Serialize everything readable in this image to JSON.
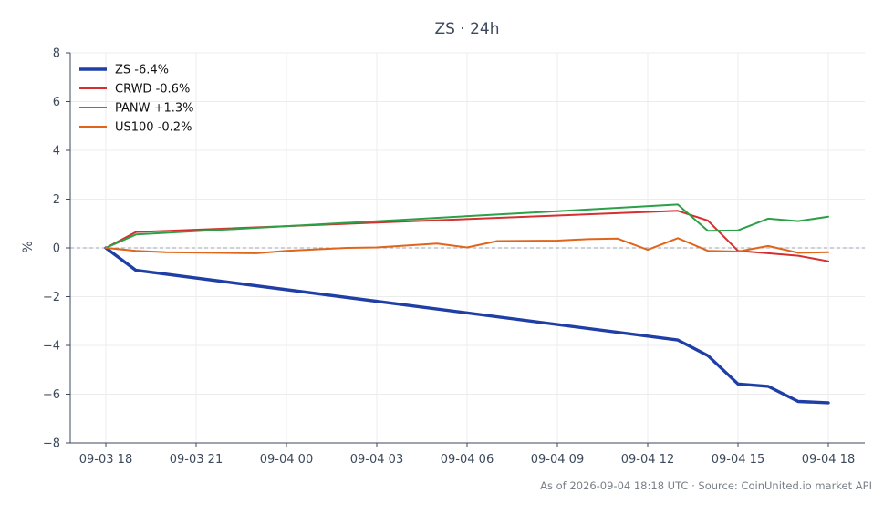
{
  "chart_data": {
    "type": "line",
    "title": "ZS · 24h",
    "xlabel": "",
    "ylabel": "%",
    "ylim": [
      -8,
      8
    ],
    "yticks": [
      8,
      6,
      4,
      2,
      0,
      -2,
      -4,
      -6,
      -8
    ],
    "ytick_labels": [
      "8",
      "6",
      "4",
      "2",
      "0",
      "−2",
      "−4",
      "−6",
      "−8"
    ],
    "x_range": [
      "09-03 18:00",
      "09-04 18:00"
    ],
    "xtick_labels": [
      "09-03 18",
      "09-03 21",
      "09-04 00",
      "09-04 03",
      "09-04 06",
      "09-04 09",
      "09-04 12",
      "09-04 15",
      "09-04 18"
    ],
    "xtick_times": [
      "09-03 18:00",
      "09-03 21:00",
      "09-04 00:00",
      "09-04 03:00",
      "09-04 06:00",
      "09-04 09:00",
      "09-04 12:00",
      "09-04 15:00",
      "09-04 18:00"
    ],
    "grid": true,
    "zero_line": true,
    "legend_position": "top-left",
    "series": [
      {
        "name": "ZS -6.4%",
        "color": "#1f3fa6",
        "points": [
          [
            "09-03 18:00",
            0.0
          ],
          [
            "09-03 19:00",
            -0.92
          ],
          [
            "09-04 13:00",
            -3.78
          ],
          [
            "09-04 14:00",
            -4.42
          ],
          [
            "09-04 15:00",
            -5.58
          ],
          [
            "09-04 16:00",
            -5.68
          ],
          [
            "09-04 17:00",
            -6.3
          ],
          [
            "09-04 18:00",
            -6.35
          ]
        ]
      },
      {
        "name": "CRWD -0.6%",
        "color": "#d62f2f",
        "points": [
          [
            "09-03 18:00",
            0.0
          ],
          [
            "09-03 19:00",
            0.65
          ],
          [
            "09-04 13:00",
            1.52
          ],
          [
            "09-04 14:00",
            1.12
          ],
          [
            "09-04 15:00",
            -0.12
          ],
          [
            "09-04 16:00",
            -0.22
          ],
          [
            "09-04 17:00",
            -0.32
          ],
          [
            "09-04 18:00",
            -0.55
          ]
        ]
      },
      {
        "name": "PANW +1.3%",
        "color": "#2ca048",
        "points": [
          [
            "09-03 18:00",
            0.0
          ],
          [
            "09-03 19:00",
            0.55
          ],
          [
            "09-04 13:00",
            1.78
          ],
          [
            "09-04 14:00",
            0.7
          ],
          [
            "09-04 15:00",
            0.72
          ],
          [
            "09-04 16:00",
            1.2
          ],
          [
            "09-04 17:00",
            1.1
          ],
          [
            "09-04 18:00",
            1.28
          ]
        ]
      },
      {
        "name": "US100 -0.2%",
        "color": "#e0651b",
        "points": [
          [
            "09-03 18:00",
            0.0
          ],
          [
            "09-03 19:00",
            -0.12
          ],
          [
            "09-03 20:00",
            -0.18
          ],
          [
            "09-03 23:00",
            -0.22
          ],
          [
            "09-04 00:00",
            -0.12
          ],
          [
            "09-04 02:00",
            0.0
          ],
          [
            "09-04 03:00",
            0.02
          ],
          [
            "09-04 05:00",
            0.18
          ],
          [
            "09-04 06:00",
            0.02
          ],
          [
            "09-04 07:00",
            0.28
          ],
          [
            "09-04 09:00",
            0.3
          ],
          [
            "09-04 10:00",
            0.36
          ],
          [
            "09-04 11:00",
            0.38
          ],
          [
            "09-04 12:00",
            -0.08
          ],
          [
            "09-04 13:00",
            0.4
          ],
          [
            "09-04 14:00",
            -0.12
          ],
          [
            "09-04 15:00",
            -0.15
          ],
          [
            "09-04 16:00",
            0.08
          ],
          [
            "09-04 17:00",
            -0.2
          ],
          [
            "09-04 18:00",
            -0.18
          ]
        ]
      }
    ],
    "footer": "As of 2026-09-04 18:18 UTC · Source: CoinUnited.io market API"
  }
}
